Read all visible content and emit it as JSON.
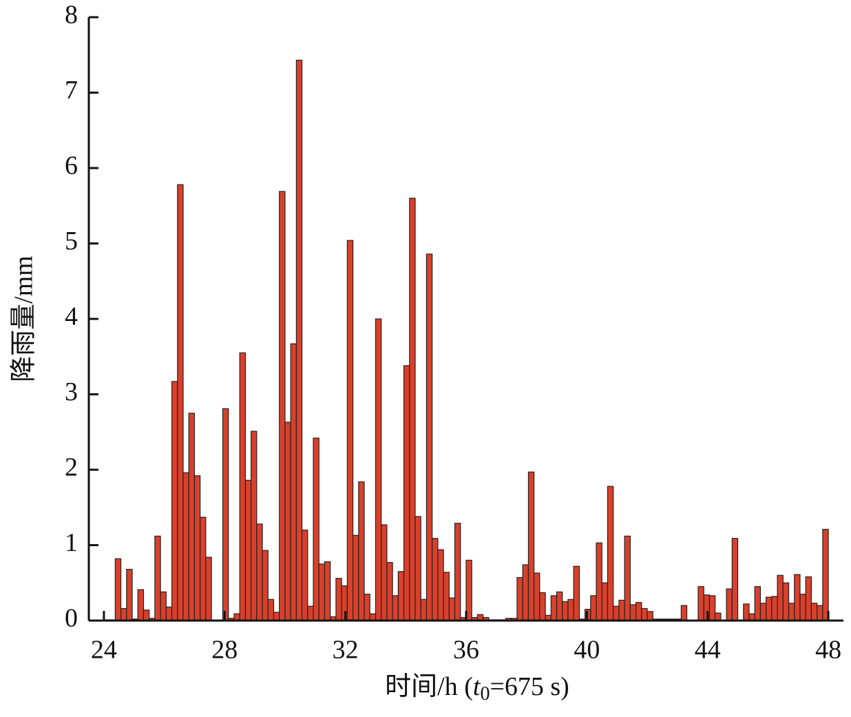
{
  "chart_data": {
    "type": "histogram",
    "y_label": "降雨量/mm",
    "x_label": [
      "时间/h (",
      "t",
      "0",
      "=675 s)"
    ],
    "color": "#d9402b",
    "bins": [
      24,
      24.1875,
      24.375,
      24.5625,
      24.75,
      24.9375,
      25.125,
      25.3125,
      25.5,
      25.6875,
      25.875,
      26.0625,
      26.25,
      26.4375,
      26.625,
      26.8125,
      27,
      27.1875,
      27.375,
      27.5625,
      27.75,
      27.9375,
      28.125,
      28.3125,
      28.5,
      28.6875,
      28.875,
      29.0625,
      29.25,
      29.4375,
      29.625,
      29.8125,
      30,
      30.1875,
      30.375,
      30.5625,
      30.75,
      30.9375,
      31.125,
      31.3125,
      31.5,
      31.6875,
      31.875,
      32.0625,
      32.25,
      32.4375,
      32.625,
      32.8125,
      33,
      33.1875,
      33.375,
      33.5625,
      33.75,
      33.9375,
      34.125,
      34.3125,
      34.5,
      34.6875,
      34.875,
      35.0625,
      35.25,
      35.4375,
      35.625,
      35.8125,
      36,
      36.1875,
      36.375,
      36.5625,
      36.75,
      36.9375,
      37.125,
      37.3125,
      37.5,
      37.6875,
      37.875,
      38.0625,
      38.25,
      38.4375,
      38.625,
      38.8125,
      39,
      39.1875,
      39.375,
      39.5625,
      39.75,
      39.9375,
      40.125,
      40.3125,
      40.5,
      40.6875,
      40.875,
      41.0625,
      41.25,
      41.4375,
      41.625,
      41.8125,
      42,
      42.1875,
      42.375,
      42.5625,
      42.75,
      42.9375,
      43.125,
      43.3125,
      43.5,
      43.6875,
      43.875,
      44.0625,
      44.25,
      44.4375,
      44.625,
      44.8125,
      45,
      45.1875,
      45.375,
      45.5625,
      45.75,
      45.9375,
      46.125,
      46.3125,
      46.5,
      46.6875,
      46.875,
      47.0625,
      47.25,
      47.4375,
      47.625,
      47.8125,
      48
    ],
    "values": [
      0.01,
      0.01,
      0.82,
      0.16,
      0.68,
      0.02,
      0.41,
      0.14,
      0.03,
      1.12,
      0.38,
      0.18,
      3.17,
      5.78,
      1.96,
      2.75,
      1.92,
      1.37,
      0.84,
      0,
      0,
      2.81,
      0.03,
      0.09,
      3.55,
      1.86,
      2.51,
      1.28,
      0.93,
      0.28,
      0.11,
      5.69,
      2.63,
      3.67,
      7.43,
      1.2,
      0.19,
      2.42,
      0.75,
      0.78,
      0.05,
      0.56,
      0.46,
      5.04,
      1.13,
      1.84,
      0.35,
      0.09,
      4.0,
      1.27,
      0.77,
      0.33,
      0.65,
      3.38,
      5.6,
      1.38,
      0.28,
      4.86,
      1.09,
      0.94,
      0.64,
      0.3,
      1.29,
      0.04,
      0.8,
      0.04,
      0.08,
      0.04,
      0.01,
      0.01,
      0.01,
      0.03,
      0.03,
      0.57,
      0.74,
      1.97,
      0.63,
      0.37,
      0.07,
      0.33,
      0.38,
      0.25,
      0.28,
      0.72,
      0.02,
      0.15,
      0.33,
      1.03,
      0.5,
      1.78,
      0.19,
      0.27,
      1.12,
      0.21,
      0.24,
      0.16,
      0.12,
      0.02,
      0.02,
      0.02,
      0.02,
      0.02,
      0.2,
      0,
      0,
      0.45,
      0.34,
      0.33,
      0.1,
      0,
      0.42,
      1.09,
      0,
      0.22,
      0.09,
      0.45,
      0.23,
      0.31,
      0.32,
      0.6,
      0.5,
      0.23,
      0.61,
      0.35,
      0.58,
      0.23,
      0.2,
      1.21
    ],
    "xlim": [
      23.5,
      48.5
    ],
    "ylim": [
      0,
      8
    ],
    "xticks": [
      24,
      28,
      32,
      36,
      40,
      44,
      48
    ],
    "yticks": [
      0,
      1,
      2,
      3,
      4,
      5,
      6,
      7,
      8
    ]
  }
}
